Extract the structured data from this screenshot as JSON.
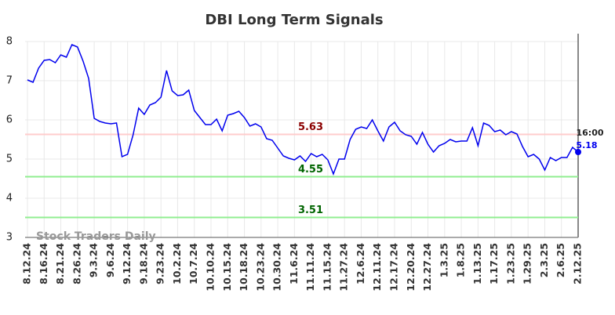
{
  "chart_data": {
    "type": "line",
    "title": "DBI Long Term Signals",
    "watermark": "Stock Traders Daily",
    "last_time": "16:00",
    "categories": [
      "8.12.24",
      null,
      null,
      "8.16.24",
      null,
      null,
      "8.21.24",
      null,
      null,
      "8.26.24",
      null,
      null,
      "9.3.24",
      null,
      null,
      "9.6.24",
      null,
      null,
      "9.12.24",
      null,
      null,
      "9.18.24",
      null,
      null,
      "9.23.24",
      null,
      null,
      "10.2.24",
      null,
      null,
      "10.7.24",
      null,
      null,
      "10.10.24",
      null,
      null,
      "10.15.24",
      null,
      null,
      "10.18.24",
      null,
      null,
      "10.23.24",
      null,
      null,
      "10.30.24",
      null,
      null,
      "11.6.24",
      null,
      null,
      "11.11.24",
      null,
      null,
      "11.15.24",
      null,
      null,
      "11.27.24",
      null,
      null,
      "12.6.24",
      null,
      null,
      "12.11.24",
      null,
      null,
      "12.17.24",
      null,
      null,
      "12.20.24",
      null,
      null,
      "12.27.24",
      null,
      null,
      "1.3.25",
      null,
      null,
      "1.8.25",
      null,
      null,
      "1.13.25",
      null,
      null,
      "1.17.25",
      null,
      null,
      "1.23.25",
      null,
      null,
      "1.29.25",
      null,
      null,
      "2.3.25",
      null,
      null,
      "2.6.25",
      null,
      null,
      "2.12.25"
    ],
    "series": [
      {
        "name": "DBI",
        "color": "#0000ee",
        "values": [
          7.02,
          6.96,
          7.32,
          7.52,
          7.54,
          7.46,
          7.66,
          7.6,
          7.92,
          7.86,
          7.5,
          7.06,
          6.04,
          5.96,
          5.92,
          5.9,
          5.92,
          5.06,
          5.12,
          5.62,
          6.3,
          6.14,
          6.38,
          6.44,
          6.58,
          7.26,
          6.74,
          6.62,
          6.64,
          6.76,
          6.24,
          6.06,
          5.88,
          5.88,
          6.02,
          5.72,
          6.12,
          6.16,
          6.22,
          6.06,
          5.84,
          5.9,
          5.82,
          5.52,
          5.48,
          5.28,
          5.08,
          5.02,
          4.98,
          5.08,
          4.94,
          5.14,
          5.06,
          5.12,
          4.98,
          4.62,
          5.0,
          5.0,
          5.5,
          5.76,
          5.82,
          5.78,
          6.0,
          5.72,
          5.46,
          5.82,
          5.94,
          5.72,
          5.62,
          5.58,
          5.38,
          5.68,
          5.38,
          5.18,
          5.34,
          5.4,
          5.5,
          5.44,
          5.46,
          5.46,
          5.8,
          5.34,
          5.92,
          5.86,
          5.7,
          5.74,
          5.62,
          5.7,
          5.64,
          5.32,
          5.06,
          5.12,
          5.0,
          4.72,
          5.04,
          4.96,
          5.04,
          5.04,
          5.3,
          5.18
        ]
      }
    ],
    "levels": [
      {
        "value": 5.63,
        "color": "#ffcccc",
        "label_color": "#8b0000"
      },
      {
        "value": 4.55,
        "color": "#90ee90",
        "label_color": "#006400"
      },
      {
        "value": 3.51,
        "color": "#90ee90",
        "label_color": "#006400"
      }
    ],
    "ylim": [
      3,
      8
    ],
    "yticks": [
      3,
      4,
      5,
      6,
      7,
      8
    ],
    "grid": true
  }
}
